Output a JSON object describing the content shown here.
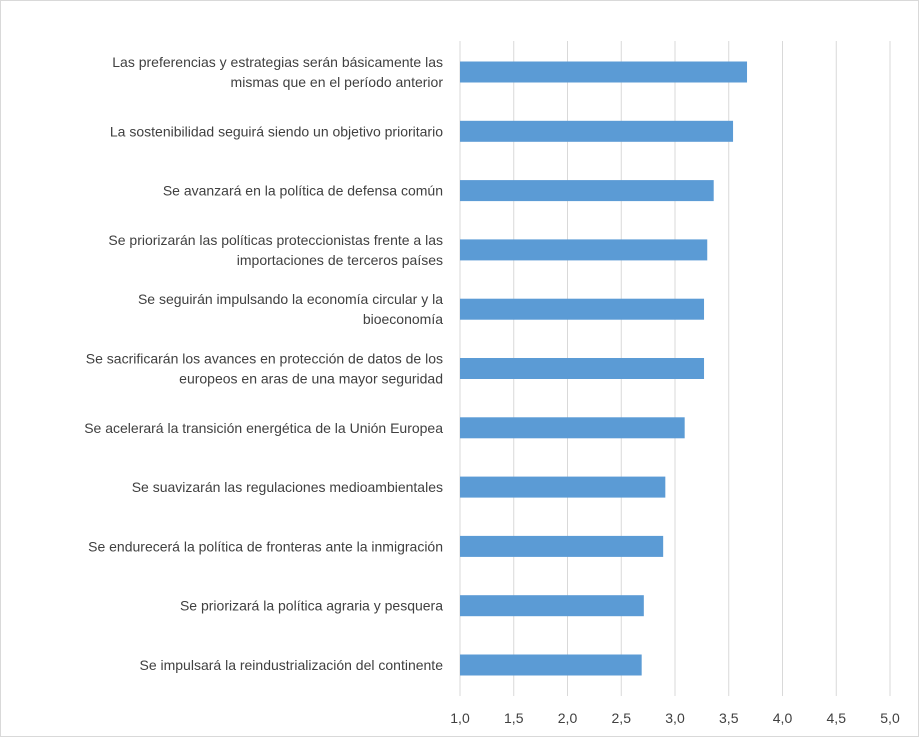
{
  "chart_data": {
    "type": "bar",
    "orientation": "horizontal",
    "title": "",
    "xlabel": "",
    "ylabel": "",
    "xlim": [
      1.0,
      5.0
    ],
    "x_ticks": [
      "1,0",
      "1,5",
      "2,0",
      "2,5",
      "3,0",
      "3,5",
      "4,0",
      "4,5",
      "5,0"
    ],
    "grid": true,
    "legend": "none",
    "bar_color": "#5b9bd5",
    "categories": [
      [
        "Las preferencias y estrategias serán básicamente las",
        "mismas que en el período anterior"
      ],
      [
        "La sostenibilidad seguirá siendo un objetivo prioritario"
      ],
      [
        "Se avanzará en la política de defensa común"
      ],
      [
        "Se priorizarán las políticas proteccionistas frente a las",
        "importaciones de terceros países"
      ],
      [
        "Se seguirán impulsando la economía circular y la",
        "bioeconomía"
      ],
      [
        "Se sacrificarán los avances en protección de datos de los",
        "europeos en aras de una mayor seguridad"
      ],
      [
        "Se acelerará la transición energética de la Unión Europea"
      ],
      [
        "Se suavizarán las regulaciones medioambientales"
      ],
      [
        "Se endurecerá la política de fronteras ante la inmigración"
      ],
      [
        "Se priorizará la política agraria y pesquera"
      ],
      [
        "Se impulsará la reindustrialización del continente"
      ]
    ],
    "values": [
      3.67,
      3.54,
      3.36,
      3.3,
      3.27,
      3.27,
      3.09,
      2.91,
      2.89,
      2.71,
      2.69
    ]
  }
}
